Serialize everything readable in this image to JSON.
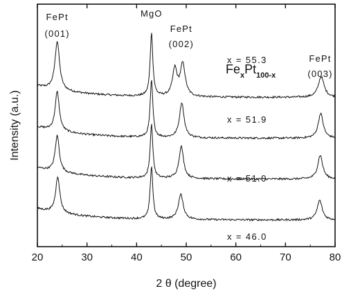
{
  "chart_data": {
    "type": "line",
    "xlabel": "2 θ (degree)",
    "ylabel": "Intensity (a.u.)",
    "xlim": [
      20,
      80
    ],
    "x_ticks": [
      20,
      30,
      40,
      50,
      60,
      70,
      80
    ],
    "x_tick_labels": [
      "20",
      "30",
      "40",
      "50",
      "60",
      "70",
      "80"
    ],
    "y_ticks_shown": false,
    "grid": false,
    "legend_label": {
      "base": "Fe",
      "sub1": "x",
      "mid": "Pt",
      "sub2": "100-x"
    },
    "annotations": [
      {
        "line1": "FePt",
        "line2": "(001)",
        "x": 24
      },
      {
        "line1": "MgO",
        "line2": "",
        "x": 43
      },
      {
        "line1": "FePt",
        "line2": "(002)",
        "x": 49
      },
      {
        "line1": "FePt",
        "line2": "(003)",
        "x": 77
      }
    ],
    "series": [
      {
        "name": "x = 55.3",
        "baseline": 3.0,
        "peaks": [
          {
            "x": 24.0,
            "height": 2.35,
            "width": 0.55
          },
          {
            "x": 43.0,
            "height": 3.05,
            "width": 0.32
          },
          {
            "x": 47.7,
            "height": 1.3,
            "width": 0.55
          },
          {
            "x": 49.3,
            "height": 1.55,
            "width": 0.6
          },
          {
            "x": 77.2,
            "height": 1.0,
            "width": 0.7
          }
        ],
        "background": 0.55
      },
      {
        "name": "x = 51.9",
        "baseline": 2.0,
        "peaks": [
          {
            "x": 24.0,
            "height": 1.9,
            "width": 0.5
          },
          {
            "x": 43.0,
            "height": 2.75,
            "width": 0.32
          },
          {
            "x": 49.1,
            "height": 1.7,
            "width": 0.55
          },
          {
            "x": 77.1,
            "height": 1.2,
            "width": 0.6
          }
        ],
        "background": 0.55
      },
      {
        "name": "x = 51.0",
        "baseline": 1.0,
        "peaks": [
          {
            "x": 24.0,
            "height": 1.75,
            "width": 0.5
          },
          {
            "x": 43.0,
            "height": 2.6,
            "width": 0.32
          },
          {
            "x": 49.0,
            "height": 1.55,
            "width": 0.55
          },
          {
            "x": 77.0,
            "height": 1.15,
            "width": 0.6
          }
        ],
        "background": 0.55
      },
      {
        "name": "x = 46.0",
        "baseline": 0.0,
        "peaks": [
          {
            "x": 24.1,
            "height": 1.75,
            "width": 0.5
          },
          {
            "x": 43.0,
            "height": 2.55,
            "width": 0.32
          },
          {
            "x": 48.9,
            "height": 1.2,
            "width": 0.6
          },
          {
            "x": 76.9,
            "height": 0.95,
            "width": 0.6
          }
        ],
        "background": 0.55
      }
    ]
  }
}
